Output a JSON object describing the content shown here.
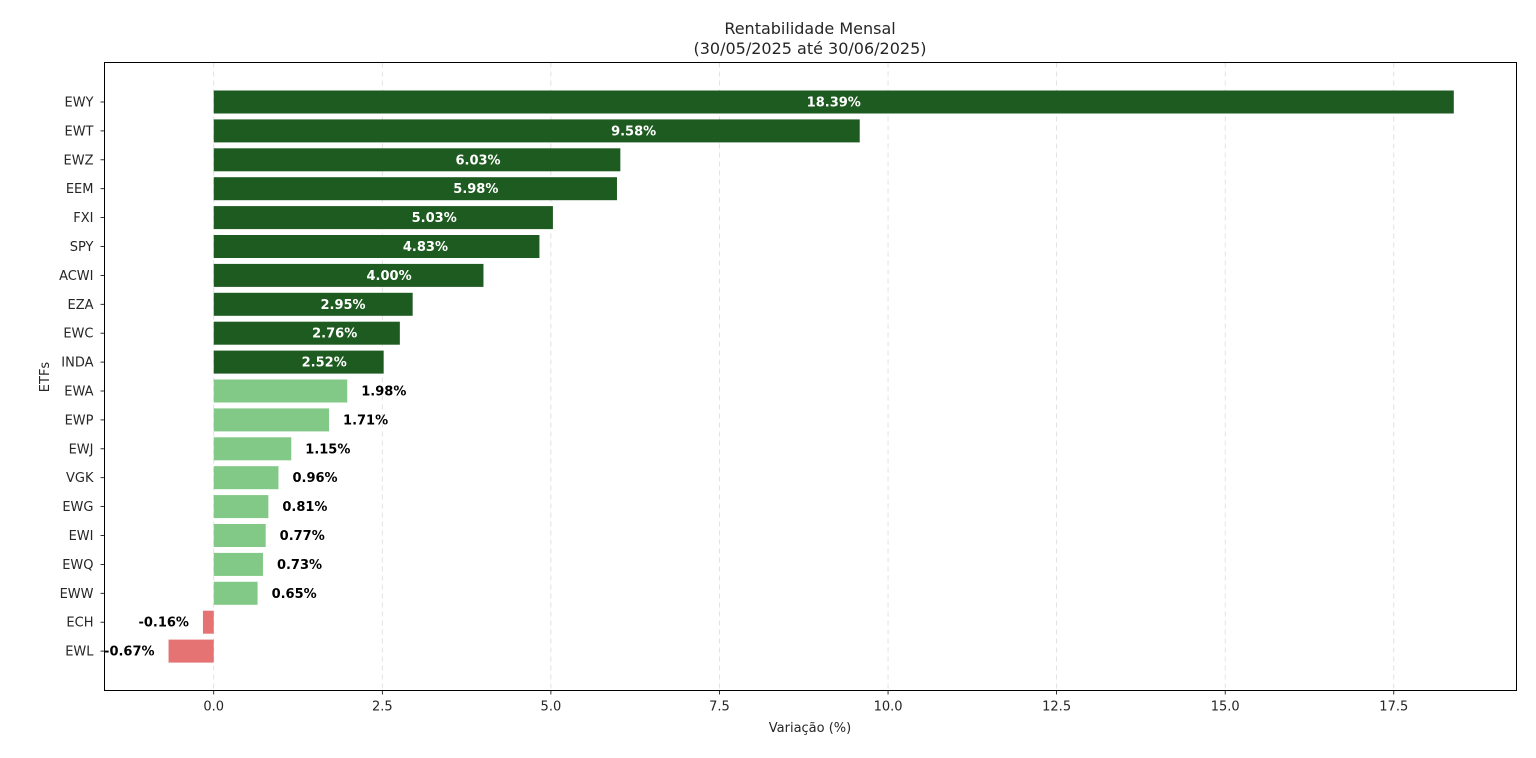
{
  "chart_data": {
    "type": "bar",
    "orientation": "horizontal",
    "title": "Rentabilidade Mensal",
    "subtitle": "(30/05/2025 até 30/06/2025)",
    "xlabel": "Variação (%)",
    "ylabel": "ETFs",
    "categories": [
      "EWY",
      "EWT",
      "EWZ",
      "EEM",
      "FXI",
      "SPY",
      "ACWI",
      "EZA",
      "EWC",
      "INDA",
      "EWA",
      "EWP",
      "EWJ",
      "VGK",
      "EWG",
      "EWI",
      "EWQ",
      "EWW",
      "ECH",
      "EWL"
    ],
    "values": [
      18.39,
      9.58,
      6.03,
      5.98,
      5.03,
      4.83,
      4.0,
      2.95,
      2.76,
      2.52,
      1.98,
      1.71,
      1.15,
      0.96,
      0.81,
      0.77,
      0.73,
      0.65,
      -0.16,
      -0.67
    ],
    "data_labels": [
      "18.39%",
      "9.58%",
      "6.03%",
      "5.98%",
      "5.03%",
      "4.83%",
      "4.00%",
      "2.95%",
      "2.76%",
      "2.52%",
      "1.98%",
      "1.71%",
      "1.15%",
      "0.96%",
      "0.81%",
      "0.77%",
      "0.73%",
      "0.65%",
      "-0.16%",
      "-0.67%"
    ],
    "xlim": [
      -1.62,
      19.32
    ],
    "xticks": [
      0.0,
      2.5,
      5.0,
      7.5,
      10.0,
      12.5,
      15.0,
      17.5
    ],
    "xtick_labels": [
      "0.0",
      "2.5",
      "5.0",
      "7.5",
      "10.0",
      "12.5",
      "15.0",
      "17.5"
    ],
    "grid": "vertical dashed",
    "colors": {
      "strong_positive": "#1e5b20",
      "mild_positive": "#82c886",
      "negative": "#e57373",
      "label_inside": "#ffffff",
      "label_outside": "#000000"
    }
  }
}
